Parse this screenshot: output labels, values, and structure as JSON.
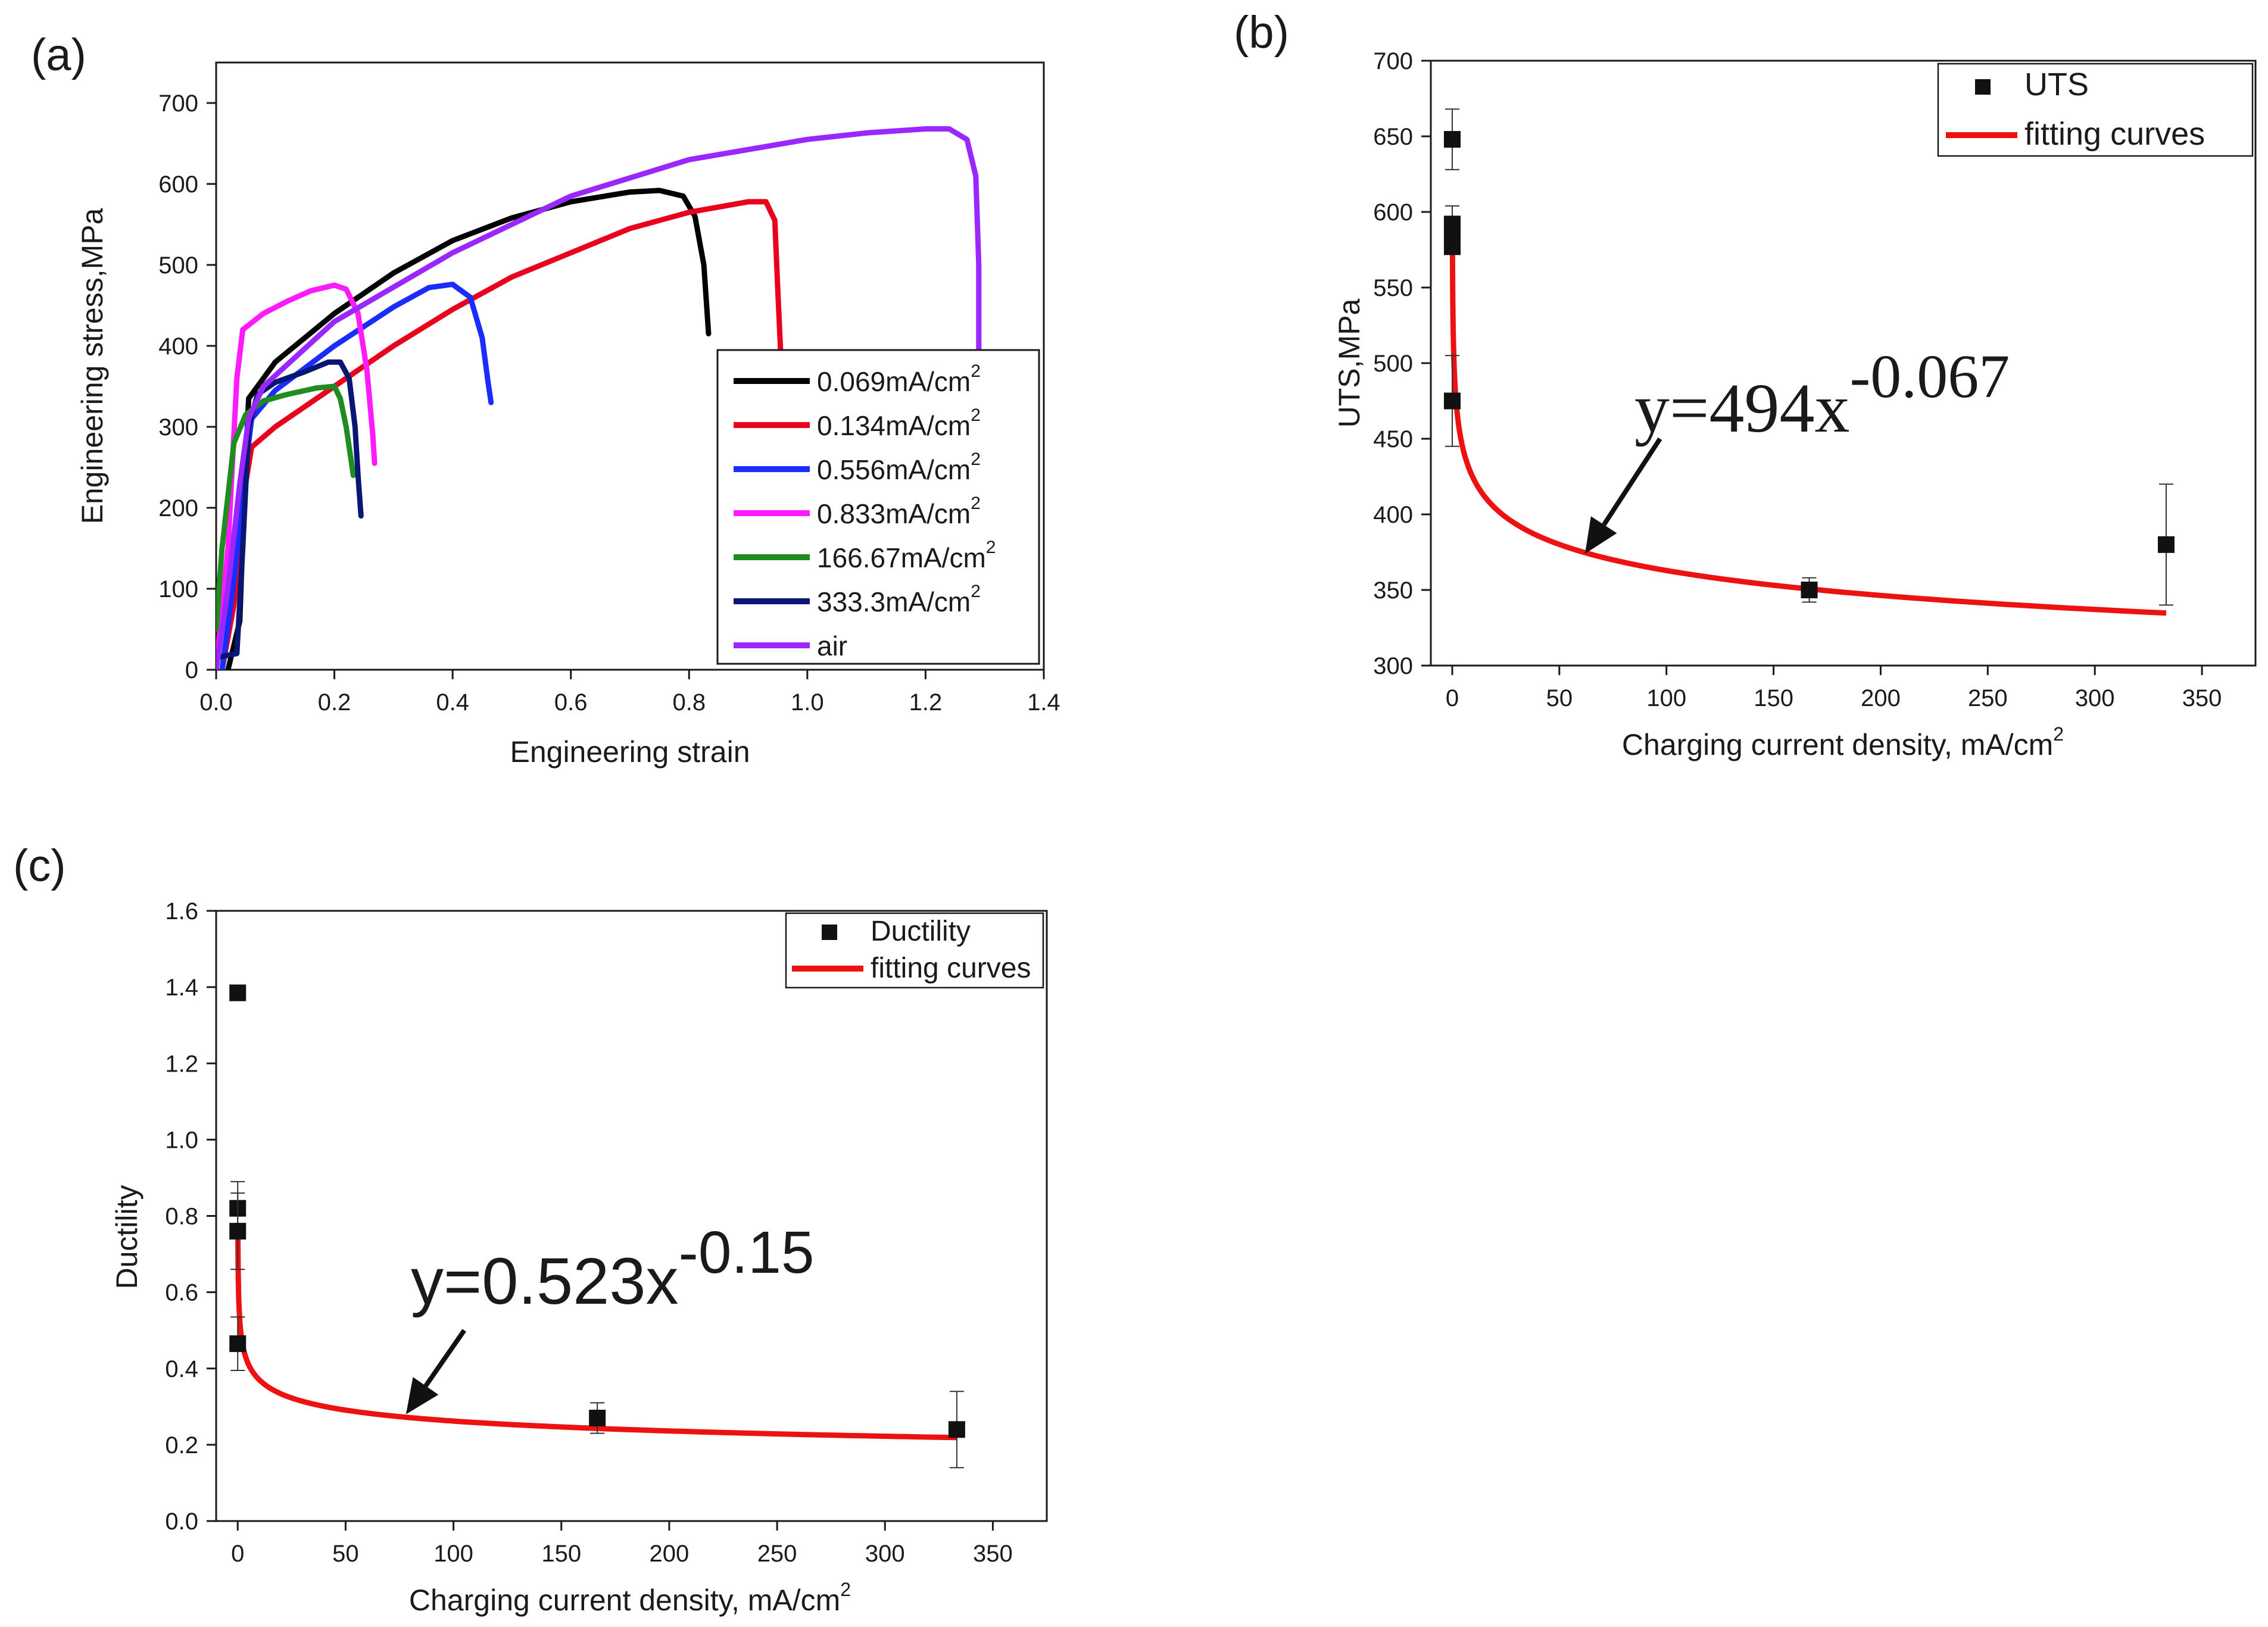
{
  "panels": {
    "a": {
      "label": "(a)"
    },
    "b": {
      "label": "(b)",
      "equation": {
        "base": "y=494x",
        "exponent": "-0.067"
      }
    },
    "c": {
      "label": "(c)",
      "equation": {
        "base": "y=0.523x",
        "exponent": "-0.15"
      }
    }
  },
  "chart_data": [
    {
      "id": "a",
      "type": "line",
      "title": "",
      "xlabel": "Engineering strain",
      "ylabel": "Engineering stress,MPa",
      "xlim": [
        0,
        1.4
      ],
      "ylim": [
        0,
        750
      ],
      "xticks": [
        "0.0",
        "0.2",
        "0.4",
        "0.6",
        "0.8",
        "1.0",
        "1.2",
        "1.4"
      ],
      "yticks": [
        "0",
        "100",
        "200",
        "300",
        "400",
        "500",
        "600",
        "700"
      ],
      "legend_position": "bottom-right",
      "series": [
        {
          "name": "0.069mA/cm",
          "sup": "2",
          "color": "#000000",
          "points": [
            [
              0.02,
              0
            ],
            [
              0.04,
              60
            ],
            [
              0.05,
              260
            ],
            [
              0.055,
              335
            ],
            [
              0.1,
              380
            ],
            [
              0.2,
              440
            ],
            [
              0.3,
              490
            ],
            [
              0.4,
              530
            ],
            [
              0.5,
              558
            ],
            [
              0.6,
              578
            ],
            [
              0.7,
              590
            ],
            [
              0.75,
              592
            ],
            [
              0.79,
              585
            ],
            [
              0.81,
              560
            ],
            [
              0.825,
              500
            ],
            [
              0.833,
              415
            ]
          ]
        },
        {
          "name": "0.134mA/cm",
          "sup": "2",
          "color": "#e8001c",
          "points": [
            [
              0.01,
              0
            ],
            [
              0.03,
              80
            ],
            [
              0.05,
              230
            ],
            [
              0.06,
              275
            ],
            [
              0.1,
              300
            ],
            [
              0.2,
              350
            ],
            [
              0.3,
              400
            ],
            [
              0.4,
              445
            ],
            [
              0.5,
              485
            ],
            [
              0.6,
              515
            ],
            [
              0.7,
              545
            ],
            [
              0.8,
              565
            ],
            [
              0.9,
              578
            ],
            [
              0.93,
              578
            ],
            [
              0.945,
              555
            ],
            [
              0.95,
              470
            ],
            [
              0.955,
              390
            ]
          ]
        },
        {
          "name": "0.556mA/cm",
          "sup": "2",
          "color": "#1a2cff",
          "points": [
            [
              0.01,
              0
            ],
            [
              0.03,
              110
            ],
            [
              0.05,
              250
            ],
            [
              0.06,
              310
            ],
            [
              0.1,
              345
            ],
            [
              0.2,
              400
            ],
            [
              0.3,
              448
            ],
            [
              0.36,
              472
            ],
            [
              0.4,
              476
            ],
            [
              0.43,
              460
            ],
            [
              0.45,
              410
            ],
            [
              0.46,
              355
            ],
            [
              0.465,
              330
            ]
          ]
        },
        {
          "name": "0.833mA/cm",
          "sup": "2",
          "color": "#ff1aff",
          "points": [
            [
              0,
              0
            ],
            [
              0.02,
              150
            ],
            [
              0.035,
              360
            ],
            [
              0.045,
              420
            ],
            [
              0.08,
              440
            ],
            [
              0.12,
              455
            ],
            [
              0.16,
              468
            ],
            [
              0.2,
              475
            ],
            [
              0.22,
              470
            ],
            [
              0.24,
              440
            ],
            [
              0.255,
              370
            ],
            [
              0.265,
              290
            ],
            [
              0.268,
              255
            ]
          ]
        },
        {
          "name": "166.67mA/cm",
          "sup": "2",
          "color": "#1e8c1e",
          "points": [
            [
              0,
              50
            ],
            [
              0.01,
              150
            ],
            [
              0.03,
              280
            ],
            [
              0.05,
              315
            ],
            [
              0.08,
              332
            ],
            [
              0.12,
              340
            ],
            [
              0.17,
              348
            ],
            [
              0.2,
              350
            ],
            [
              0.21,
              335
            ],
            [
              0.22,
              300
            ],
            [
              0.228,
              260
            ],
            [
              0.232,
              240
            ]
          ]
        },
        {
          "name": "333.3mA/cm",
          "sup": "2",
          "color": "#0a1673",
          "points": [
            [
              0,
              15
            ],
            [
              0.035,
              20
            ],
            [
              0.045,
              150
            ],
            [
              0.055,
              300
            ],
            [
              0.07,
              340
            ],
            [
              0.1,
              355
            ],
            [
              0.15,
              368
            ],
            [
              0.19,
              380
            ],
            [
              0.21,
              380
            ],
            [
              0.225,
              360
            ],
            [
              0.235,
              300
            ],
            [
              0.24,
              240
            ],
            [
              0.245,
              190
            ]
          ]
        },
        {
          "name": "air",
          "sup": "",
          "color": "#9a27ff",
          "points": [
            [
              0,
              0
            ],
            [
              0.02,
              100
            ],
            [
              0.04,
              230
            ],
            [
              0.055,
              310
            ],
            [
              0.08,
              350
            ],
            [
              0.2,
              430
            ],
            [
              0.4,
              515
            ],
            [
              0.6,
              585
            ],
            [
              0.8,
              630
            ],
            [
              1.0,
              655
            ],
            [
              1.1,
              663
            ],
            [
              1.2,
              668
            ],
            [
              1.24,
              668
            ],
            [
              1.27,
              655
            ],
            [
              1.285,
              610
            ],
            [
              1.29,
              500
            ],
            [
              1.29,
              395
            ]
          ]
        }
      ]
    },
    {
      "id": "b",
      "type": "scatter",
      "title": "",
      "xlabel": "Charging current density, mA/cm",
      "xlabel_sup": "2",
      "ylabel": "UTS,MPa",
      "xlim": [
        -10,
        375
      ],
      "ylim": [
        300,
        700
      ],
      "xticks": [
        "0",
        "50",
        "100",
        "150",
        "200",
        "250",
        "300",
        "350"
      ],
      "yticks": [
        "300",
        "350",
        "400",
        "450",
        "500",
        "550",
        "600",
        "650",
        "700"
      ],
      "legend_position": "top-right",
      "legend": [
        "UTS",
        "fitting curves"
      ],
      "points": [
        {
          "x": 0,
          "y": 648,
          "err": 20
        },
        {
          "x": 0,
          "y": 592,
          "err": 12
        },
        {
          "x": 0,
          "y": 587,
          "err": 0
        },
        {
          "x": 0,
          "y": 577,
          "err": 0
        },
        {
          "x": 0,
          "y": 475,
          "err": 30
        },
        {
          "x": 166.67,
          "y": 350,
          "err": 8
        },
        {
          "x": 333.3,
          "y": 380,
          "err": 40
        }
      ],
      "fit": {
        "a": 494,
        "b": -0.067,
        "x_from": 0.069,
        "x_to": 333.3
      },
      "arrow": {
        "from": [
          97,
          450
        ],
        "to": [
          62,
          374
        ]
      }
    },
    {
      "id": "c",
      "type": "scatter",
      "title": "",
      "xlabel": "Charging current density, mA/cm",
      "xlabel_sup": "2",
      "ylabel": "Ductility",
      "xlim": [
        -10,
        375
      ],
      "ylim": [
        0,
        1.6
      ],
      "xticks": [
        "0",
        "50",
        "100",
        "150",
        "200",
        "250",
        "300",
        "350"
      ],
      "yticks": [
        "0.0",
        "0.2",
        "0.4",
        "0.6",
        "0.8",
        "1.0",
        "1.2",
        "1.4",
        "1.6"
      ],
      "legend_position": "top-right",
      "legend": [
        "Ductility",
        "fitting curves"
      ],
      "points": [
        {
          "x": 0,
          "y": 1.385,
          "err": 0
        },
        {
          "x": 0,
          "y": 0.82,
          "err": 0.07
        },
        {
          "x": 0,
          "y": 0.76,
          "err": 0.1
        },
        {
          "x": 0,
          "y": 0.465,
          "err": 0.07
        },
        {
          "x": 166.67,
          "y": 0.27,
          "err": 0.04
        },
        {
          "x": 333.3,
          "y": 0.24,
          "err": 0.1
        }
      ],
      "fit": {
        "a": 0.523,
        "b": -0.15,
        "x_from": 0.069,
        "x_to": 333.3
      },
      "arrow": {
        "from": [
          105,
          0.5
        ],
        "to": [
          78,
          0.28
        ]
      }
    }
  ]
}
